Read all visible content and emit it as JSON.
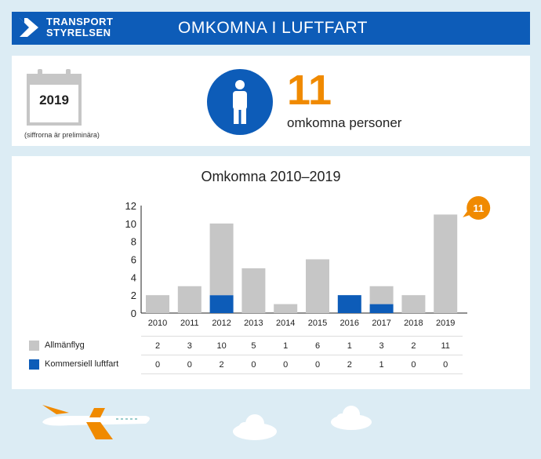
{
  "header": {
    "brand_line1": "TRANSPORT",
    "brand_line2": "STYRELSEN",
    "title": "OMKOMNA I LUFTFART",
    "color": "#0d5cb8"
  },
  "summary": {
    "year": "2019",
    "note": "(siffrorna är preliminära)",
    "count": "11",
    "count_label": "omkomna personer",
    "accent": "#f08a00"
  },
  "chart_data": {
    "type": "bar",
    "title": "Omkomna 2010–2019",
    "categories": [
      "2010",
      "2011",
      "2012",
      "2013",
      "2014",
      "2015",
      "2016",
      "2017",
      "2018",
      "2019"
    ],
    "series": [
      {
        "name": "Allmänflyg",
        "values": [
          2,
          3,
          10,
          5,
          1,
          6,
          1,
          3,
          2,
          11
        ],
        "color": "#c6c6c6"
      },
      {
        "name": "Kommersiell luftfart",
        "values": [
          0,
          0,
          2,
          0,
          0,
          0,
          2,
          1,
          0,
          0
        ],
        "color": "#0d5cb8"
      }
    ],
    "stacked": true,
    "ylim": [
      0,
      12
    ],
    "yticks": [
      0,
      2,
      4,
      6,
      8,
      10,
      12
    ],
    "callout": "11",
    "legend": "table-below"
  }
}
